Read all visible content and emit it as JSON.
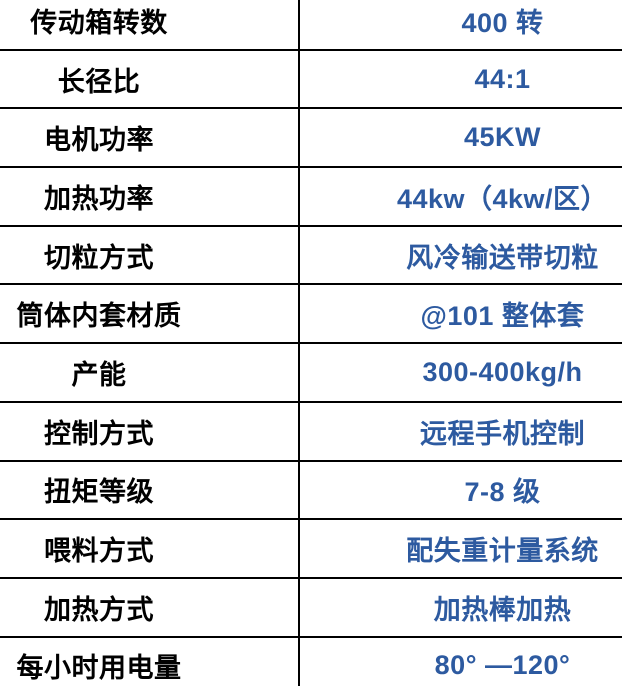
{
  "table": {
    "border_color": "#000000",
    "label_color": "#000000",
    "value_color": "#2d5aa0",
    "rows": [
      {
        "label": "传动箱转数",
        "value": "400 转"
      },
      {
        "label": "长径比",
        "value": "44:1"
      },
      {
        "label": "电机功率",
        "value": "45KW"
      },
      {
        "label": "加热功率",
        "value": "44kw（4kw/区）"
      },
      {
        "label": "切粒方式",
        "value": "风冷输送带切粒"
      },
      {
        "label": "筒体内套材质",
        "value": "@101 整体套"
      },
      {
        "label": "产能",
        "value": "300-400kg/h"
      },
      {
        "label": "控制方式",
        "value": "远程手机控制"
      },
      {
        "label": "扭矩等级",
        "value": "7-8 级"
      },
      {
        "label": "喂料方式",
        "value": "配失重计量系统"
      },
      {
        "label": "加热方式",
        "value": "加热棒加热"
      },
      {
        "label": "每小时用电量",
        "value": "80° —120°"
      }
    ]
  }
}
